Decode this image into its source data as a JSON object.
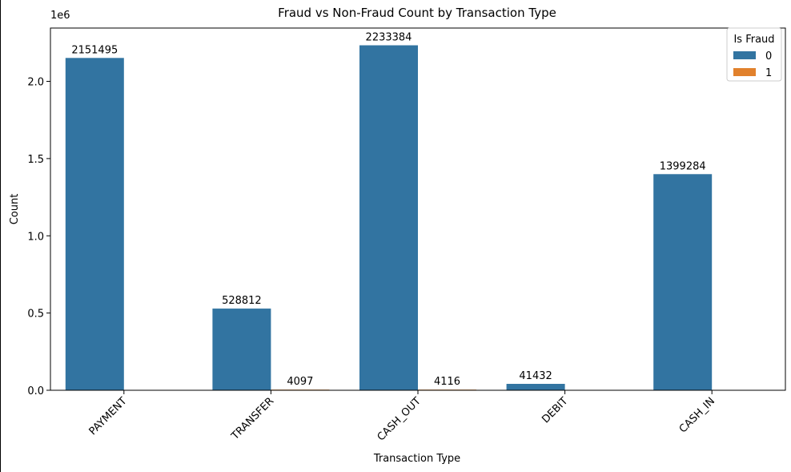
{
  "chart_data": {
    "type": "bar",
    "title": "Fraud vs Non-Fraud Count by Transaction Type",
    "xlabel": "Transaction Type",
    "ylabel": "Count",
    "y_offset_label": "1e6",
    "categories": [
      "PAYMENT",
      "TRANSFER",
      "CASH_OUT",
      "DEBIT",
      "CASH_IN"
    ],
    "series": [
      {
        "name": "0",
        "color": "#3274a1",
        "values": [
          2151495,
          528812,
          2233384,
          41432,
          1399284
        ]
      },
      {
        "name": "1",
        "color": "#e1812c",
        "values": [
          0,
          4097,
          4116,
          0,
          0
        ]
      }
    ],
    "data_labels": [
      [
        "2151495",
        "528812",
        "2233384",
        "41432",
        "1399284"
      ],
      [
        "",
        "4097",
        "4116",
        "",
        ""
      ]
    ],
    "legend": {
      "title": "Is Fraud",
      "placement": "top-right"
    },
    "ylim": [
      0,
      2345053
    ],
    "yticks": [
      0,
      500000,
      1000000,
      1500000,
      2000000
    ],
    "ytick_labels": [
      "0.0",
      "0.5",
      "1.0",
      "1.5",
      "2.0"
    ],
    "grid": false
  }
}
